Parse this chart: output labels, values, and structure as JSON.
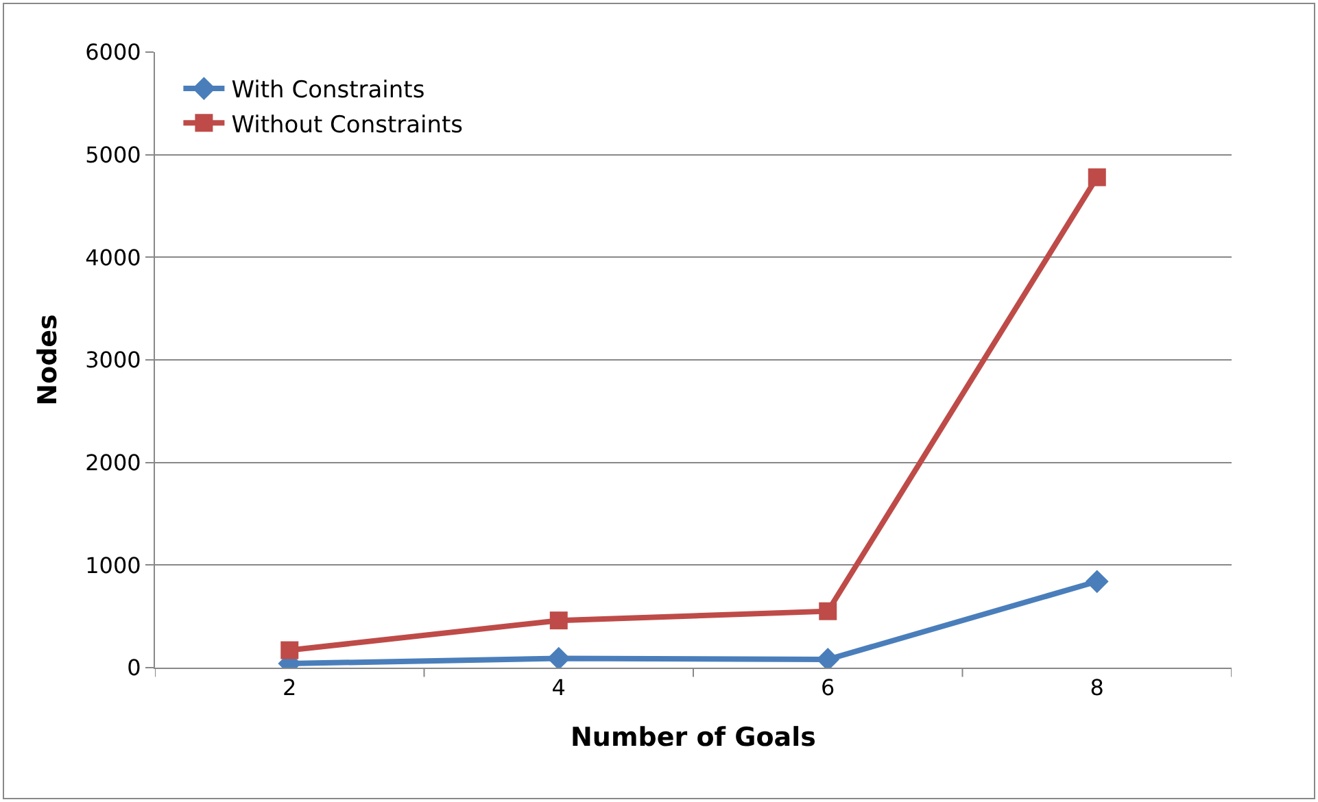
{
  "chart_data": {
    "type": "line",
    "xlabel": "Number of Goals",
    "ylabel": "Nodes",
    "categories": [
      "2",
      "4",
      "6",
      "8"
    ],
    "series": [
      {
        "name": "With Constraints",
        "color": "#4a7ebb",
        "marker": "diamond",
        "values": [
          40,
          90,
          80,
          840
        ]
      },
      {
        "name": "Without Constraints",
        "color": "#be4b48",
        "marker": "square",
        "values": [
          170,
          460,
          550,
          4780
        ]
      }
    ],
    "ylim": [
      0,
      6000
    ],
    "yticks": [
      0,
      1000,
      2000,
      3000,
      4000,
      5000,
      6000
    ],
    "grid": "y",
    "legend": "top left",
    "line_style": "solid"
  }
}
